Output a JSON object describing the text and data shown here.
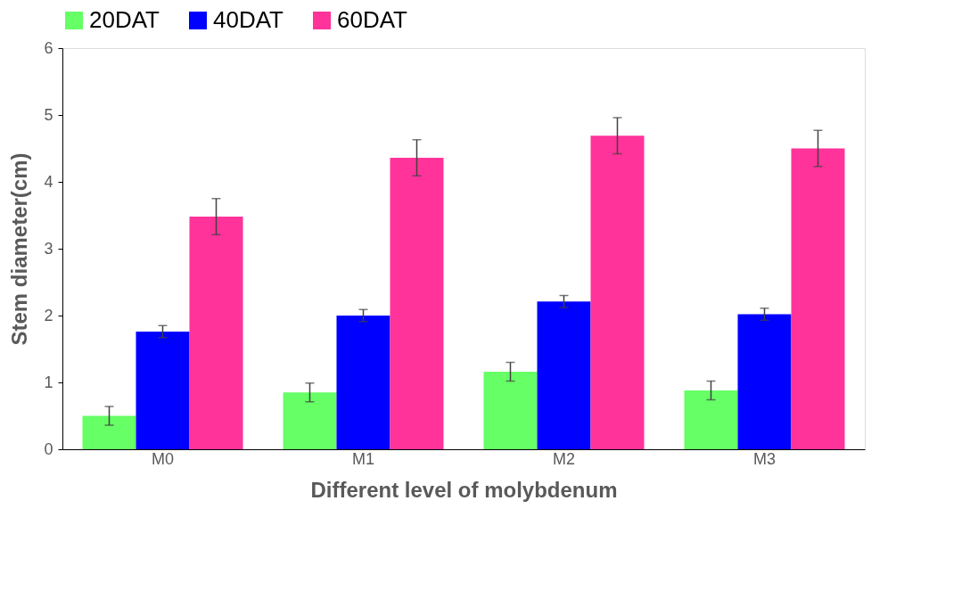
{
  "chart_data": {
    "type": "bar",
    "xlabel": "Different level of molybdenum",
    "ylabel": "Stem diameter(cm)",
    "categories": [
      "M0",
      "M1",
      "M2",
      "M3"
    ],
    "series": [
      {
        "name": "20DAT",
        "color": "#66ff66",
        "values": [
          0.5,
          0.85,
          1.16,
          0.88
        ],
        "errors": [
          0.14,
          0.14,
          0.14,
          0.14
        ]
      },
      {
        "name": "40DAT",
        "color": "#0000ff",
        "values": [
          1.76,
          2.0,
          2.21,
          2.02
        ],
        "errors": [
          0.09,
          0.09,
          0.09,
          0.09
        ]
      },
      {
        "name": "60DAT",
        "color": "#ff3399",
        "values": [
          3.48,
          4.36,
          4.69,
          4.5
        ],
        "errors": [
          0.27,
          0.27,
          0.27,
          0.27
        ]
      }
    ],
    "ylim": [
      0,
      6
    ],
    "yticks": [
      0,
      1,
      2,
      3,
      4,
      5,
      6
    ],
    "grid": false,
    "legend": "top"
  }
}
